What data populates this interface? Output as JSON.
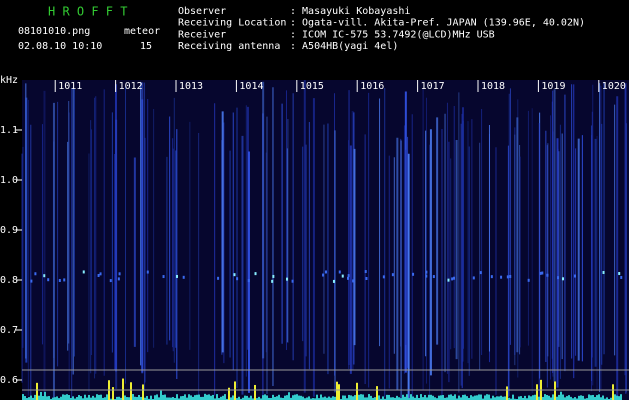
{
  "header": {
    "title": "H R O F F T",
    "filename": "08101010.png",
    "datetime": "02.08.10 10:10",
    "meteor_label": "meteor",
    "meteor_count": "15",
    "fields": [
      {
        "label": "Observer",
        "value": ": Masayuki Kobayashi"
      },
      {
        "label": "Receiving Location",
        "value": ": Ogata-vill. Akita-Pref. JAPAN (139.96E, 40.02N)"
      },
      {
        "label": "Receiver",
        "value": ": ICOM IC-575 53.7492(@LCD)MHz USB"
      },
      {
        "label": "Receiving antenna",
        "value": ": A504HB(yagi 4el)"
      }
    ]
  },
  "chart_data": {
    "type": "spectrogram",
    "y_label": "kHz",
    "xlim": [
      1010.45,
      1020.5
    ],
    "xticks": [
      1011,
      1012,
      1013,
      1014,
      1015,
      1016,
      1017,
      1018,
      1019,
      1020
    ],
    "ylim": [
      0.56,
      1.2
    ],
    "yticks": [
      {
        "value": 1.1,
        "label": "1.1"
      },
      {
        "value": 1.0,
        "label": "1.0"
      },
      {
        "value": 0.9,
        "label": "0.9"
      },
      {
        "value": 0.8,
        "label": "0.8"
      },
      {
        "value": 0.7,
        "label": "0.7"
      },
      {
        "value": 0.6,
        "label": "0.6"
      }
    ]
  }
}
